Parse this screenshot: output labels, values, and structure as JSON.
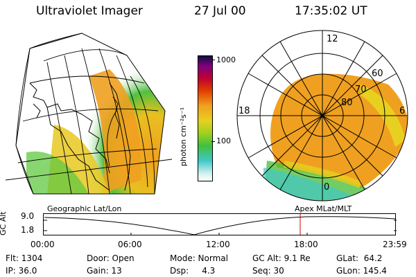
{
  "header": {
    "title": "Ultraviolet Imager",
    "date": "27 Jul 00",
    "time": "17:35:02 UT"
  },
  "colorbar": {
    "unit_label": "photon cm⁻²s⁻¹",
    "ticks": [
      "1000",
      "100"
    ]
  },
  "polar_plot": {
    "mlt_labels": [
      "12",
      "18",
      "6",
      "0"
    ],
    "lat_labels": [
      "60",
      "70",
      "80"
    ]
  },
  "altitude_panel": {
    "left_title": "Geographic Lat/Lon",
    "right_title": "Apex MLat/MLT",
    "y_axis_label": "GC Alt",
    "y_ticks": [
      "9.0",
      "1.8"
    ],
    "time_ticks": [
      "00:00",
      "06:00",
      "12:00",
      "18:00",
      "23:59"
    ],
    "marker_time": "17:35"
  },
  "status": {
    "row1": {
      "flt": "Flt: 1304",
      "door": "Door: Open",
      "mode": "Mode: Normal",
      "gc_alt": "GC Alt: 9.1 Re",
      "glat": "GLat:  64.2"
    },
    "row2": {
      "ip": "IP: 36.0",
      "gain": "Gain: 13",
      "dsp": "Dsp:     4.3",
      "seq": "Seq: 30",
      "glon": "GLon: 145.4"
    }
  },
  "colors": {
    "aurora_orange": "#f0a020",
    "aurora_yellow": "#e8d020",
    "aurora_green": "#40c040",
    "aurora_cyan": "#40c8c8",
    "marker_red": "#d00000"
  }
}
